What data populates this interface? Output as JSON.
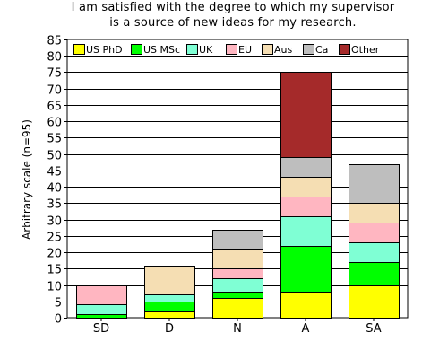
{
  "chart_data": {
    "type": "bar",
    "stacked": true,
    "title_lines": [
      "I am satisfied with the degree to which my supervisor",
      "is a source of new ideas for my research."
    ],
    "xlabel": "",
    "ylabel": "Arbitrary scale (n=95)",
    "ylim": [
      0,
      85
    ],
    "yticks": [
      0,
      5,
      10,
      15,
      20,
      25,
      30,
      35,
      40,
      45,
      50,
      55,
      60,
      65,
      70,
      75,
      80,
      85
    ],
    "grid": true,
    "legend_position": "top",
    "categories": [
      "SD",
      "D",
      "N",
      "A",
      "SA"
    ],
    "series": [
      {
        "name": "US PhD",
        "color": "#ffff00",
        "values": [
          0,
          2,
          6,
          8,
          10
        ]
      },
      {
        "name": "US MSc",
        "color": "#00ff00",
        "values": [
          1,
          3,
          2,
          14,
          7
        ]
      },
      {
        "name": "UK",
        "color": "#7fffd4",
        "values": [
          3,
          2,
          4,
          9,
          6
        ]
      },
      {
        "name": "EU",
        "color": "#ffb6c1",
        "values": [
          6,
          0,
          3,
          6,
          6
        ]
      },
      {
        "name": "Aus",
        "color": "#f5deb3",
        "values": [
          0,
          9,
          6,
          6,
          6
        ]
      },
      {
        "name": "Ca",
        "color": "#bebebe",
        "values": [
          0,
          0,
          6,
          6,
          12
        ]
      },
      {
        "name": "Other",
        "color": "#a52a2a",
        "values": [
          0,
          0,
          0,
          26,
          0
        ]
      }
    ]
  }
}
